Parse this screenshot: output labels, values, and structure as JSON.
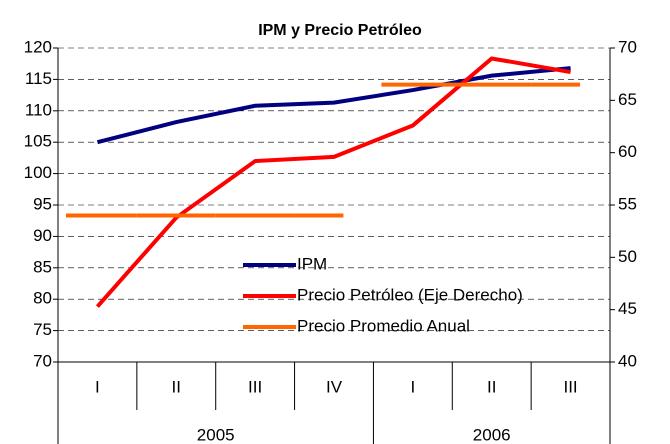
{
  "chart_data": {
    "type": "line",
    "title": "IPM y Precio Petróleo",
    "category_groups": [
      {
        "name": "2005",
        "categories": [
          "I",
          "II",
          "III",
          "IV"
        ]
      },
      {
        "name": "2006",
        "categories": [
          "I",
          "II",
          "III"
        ]
      }
    ],
    "ylim": [
      70,
      120
    ],
    "yticks": [
      70,
      75,
      80,
      85,
      90,
      95,
      100,
      105,
      110,
      115,
      120
    ],
    "y2lim": [
      40,
      70
    ],
    "y2ticks": [
      40,
      45,
      50,
      55,
      60,
      65,
      70
    ],
    "grid": true,
    "series": [
      {
        "name": "IPM",
        "color": "#000080",
        "values": [
          105,
          108.2,
          110.8,
          111.3,
          113.3,
          115.6,
          116.8
        ]
      },
      {
        "name": "Precio Petróleo (Eje Derecho)",
        "color": "#ff0000",
        "axis": "y2",
        "values": [
          45.3,
          53.8,
          59.2,
          59.6,
          62.6,
          69.0,
          67.7
        ]
      },
      {
        "name": "Precio Promedio Anual",
        "color": "#ff6600",
        "axis": "y2",
        "style": "annual-step",
        "values": [
          54.0,
          54.0,
          54.0,
          54.0,
          66.5,
          66.5,
          66.5
        ]
      }
    ]
  }
}
